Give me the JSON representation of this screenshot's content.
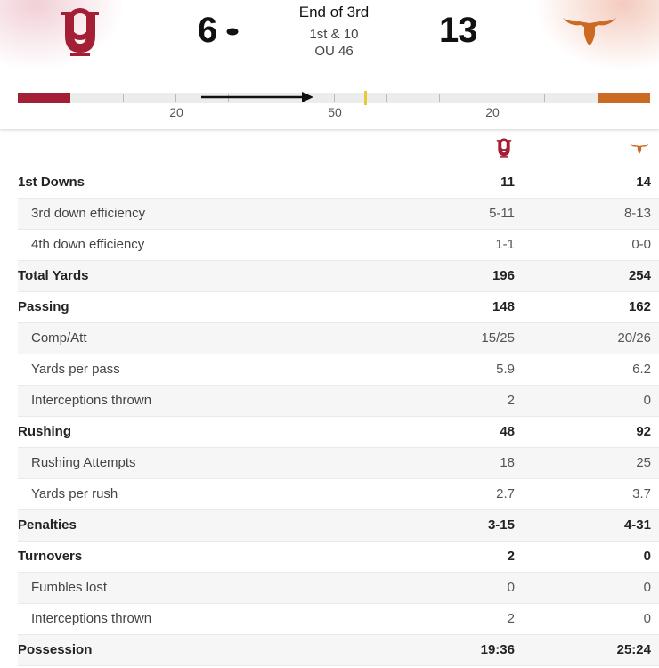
{
  "game": {
    "home_score": "6",
    "away_score": "13",
    "period": "End of 3rd",
    "down_distance": "1st & 10",
    "ball_spot": "OU 46"
  },
  "field": {
    "yard_labels": [
      "20",
      "50",
      "20"
    ],
    "line_of_scrimmage_fraction": 0.55
  },
  "colors": {
    "ou_crimson": "#a41e35",
    "texas_orange": "#cc6a24",
    "los_yellow": "#e3cc35"
  },
  "icons": {
    "home_logo": "ou-interlocking-logo",
    "away_logo": "texas-longhorn-logo",
    "possession": "football-icon",
    "drive": "drive-direction-arrow"
  },
  "stats": [
    {
      "label": "1st Downs",
      "ou": "11",
      "tx": "14",
      "type": "main"
    },
    {
      "label": "3rd down efficiency",
      "ou": "5-11",
      "tx": "8-13",
      "type": "sub"
    },
    {
      "label": "4th down efficiency",
      "ou": "1-1",
      "tx": "0-0",
      "type": "sub"
    },
    {
      "label": "Total Yards",
      "ou": "196",
      "tx": "254",
      "type": "main"
    },
    {
      "label": "Passing",
      "ou": "148",
      "tx": "162",
      "type": "main"
    },
    {
      "label": "Comp/Att",
      "ou": "15/25",
      "tx": "20/26",
      "type": "sub"
    },
    {
      "label": "Yards per pass",
      "ou": "5.9",
      "tx": "6.2",
      "type": "sub"
    },
    {
      "label": "Interceptions thrown",
      "ou": "2",
      "tx": "0",
      "type": "sub"
    },
    {
      "label": "Rushing",
      "ou": "48",
      "tx": "92",
      "type": "main"
    },
    {
      "label": "Rushing Attempts",
      "ou": "18",
      "tx": "25",
      "type": "sub"
    },
    {
      "label": "Yards per rush",
      "ou": "2.7",
      "tx": "3.7",
      "type": "sub"
    },
    {
      "label": "Penalties",
      "ou": "3-15",
      "tx": "4-31",
      "type": "main"
    },
    {
      "label": "Turnovers",
      "ou": "2",
      "tx": "0",
      "type": "main"
    },
    {
      "label": "Fumbles lost",
      "ou": "0",
      "tx": "0",
      "type": "sub"
    },
    {
      "label": "Interceptions thrown",
      "ou": "2",
      "tx": "0",
      "type": "sub"
    },
    {
      "label": "Possession",
      "ou": "19:36",
      "tx": "25:24",
      "type": "main"
    }
  ]
}
